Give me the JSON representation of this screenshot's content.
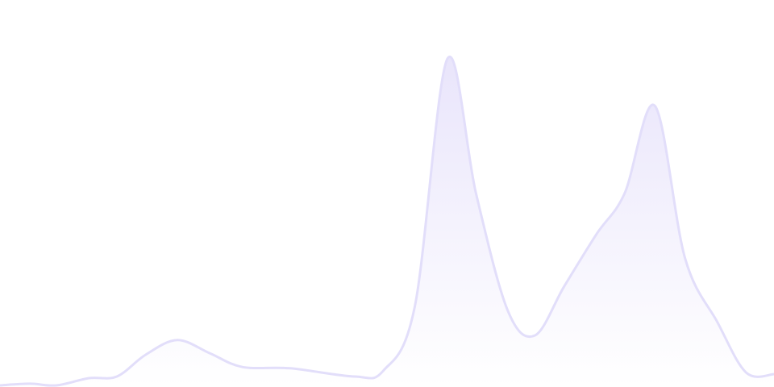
{
  "chart_data": {
    "type": "area",
    "title": "",
    "xlabel": "",
    "ylabel": "",
    "xlim": [
      0,
      100
    ],
    "ylim": [
      0,
      100
    ],
    "grid": false,
    "legend": "none",
    "smooth": true,
    "colors": {
      "line": "#e2defa",
      "fill_top": "#e9e5fb",
      "fill_bottom": "#ffffff"
    },
    "x": [
      0,
      3.9,
      7.3,
      11.5,
      15.1,
      18.8,
      22.9,
      27.1,
      31.3,
      37.5,
      45.8,
      49.5,
      53.6,
      57.8,
      61.5,
      65.6,
      69.1,
      72.9,
      77.1,
      80.7,
      84.6,
      88.5,
      92.7,
      96.4,
      100
    ],
    "values": [
      0.5,
      1.0,
      0.5,
      2.7,
      3.2,
      9.8,
      14.3,
      10.3,
      6.1,
      5.7,
      3.2,
      4.9,
      24.6,
      100,
      59,
      23.3,
      15.7,
      30.7,
      46.7,
      59,
      85.7,
      39.3,
      19.7,
      4.4,
      3.9
    ]
  }
}
